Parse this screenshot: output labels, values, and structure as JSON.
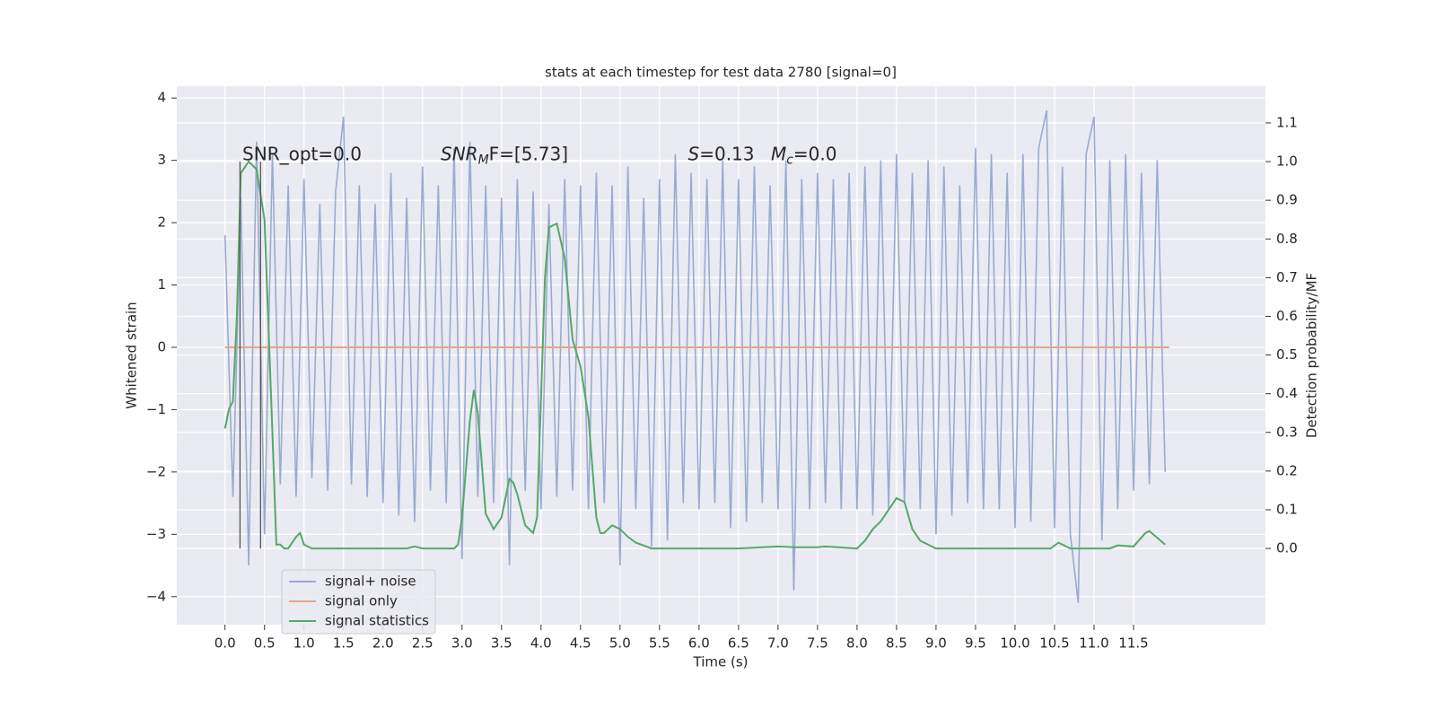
{
  "chart_data": {
    "type": "line",
    "title": "stats at each timestep for test data 2780 [signal=0]",
    "xlabel": "Time (s)",
    "ylabel": "Whitened strain",
    "y2label": "Detection probability/MF",
    "xlim": [
      -0.61,
      13.17
    ],
    "ylim": [
      -4.45,
      4.19
    ],
    "y2lim": [
      -0.197,
      1.195
    ],
    "xticks": [
      {
        "value": 0,
        "label": "0.0"
      },
      0.5,
      {
        "value": 1,
        "label": "1.0"
      },
      1.5,
      {
        "value": 2,
        "label": "2.0"
      },
      2.5,
      {
        "value": 3,
        "label": "3.0"
      },
      3.5,
      {
        "value": 4,
        "label": "4.0"
      },
      4.5,
      {
        "value": 5,
        "label": "5.0"
      },
      5.5,
      {
        "value": 6,
        "label": "6.0"
      },
      6.5,
      {
        "value": 7,
        "label": "7.0"
      },
      7.5,
      {
        "value": 8,
        "label": "8.0"
      },
      8.5,
      {
        "value": 9,
        "label": "9.0"
      },
      9.5,
      {
        "value": 10,
        "label": "10.0"
      },
      10.5,
      {
        "value": 11,
        "label": "11.0"
      },
      11.5
    ],
    "yticks": [
      {
        "value": -4,
        "label": "−4"
      },
      {
        "value": -3,
        "label": "−3"
      },
      {
        "value": -2,
        "label": "−2"
      },
      {
        "value": -1,
        "label": "−1"
      },
      0,
      1,
      2,
      3,
      4
    ],
    "y2ticks": [
      {
        "value": 0,
        "label": "0.0"
      },
      0.1,
      0.2,
      0.3,
      0.4,
      0.5,
      0.6,
      0.7,
      0.8,
      0.9,
      {
        "value": 1,
        "label": "1.0"
      },
      1.1
    ],
    "grid": true,
    "legend": "lower left",
    "series": [
      {
        "name": "signal+ noise",
        "color": "#9aabd0",
        "x": [
          0.0,
          0.1,
          0.2,
          0.3,
          0.4,
          0.5,
          0.6,
          0.7,
          0.8,
          0.9,
          1.0,
          1.1,
          1.2,
          1.3,
          1.4,
          1.5,
          1.6,
          1.7,
          1.8,
          1.9,
          2.0,
          2.1,
          2.2,
          2.3,
          2.4,
          2.5,
          2.6,
          2.7,
          2.8,
          2.9,
          3.0,
          3.1,
          3.2,
          3.3,
          3.4,
          3.5,
          3.6,
          3.7,
          3.8,
          3.9,
          4.0,
          4.1,
          4.2,
          4.3,
          4.4,
          4.5,
          4.6,
          4.7,
          4.8,
          4.9,
          5.0,
          5.1,
          5.2,
          5.3,
          5.4,
          5.5,
          5.6,
          5.7,
          5.8,
          5.9,
          6.0,
          6.1,
          6.2,
          6.3,
          6.4,
          6.5,
          6.6,
          6.7,
          6.8,
          6.9,
          7.0,
          7.1,
          7.2,
          7.3,
          7.4,
          7.5,
          7.6,
          7.7,
          7.8,
          7.9,
          8.0,
          8.1,
          8.2,
          8.3,
          8.4,
          8.5,
          8.6,
          8.7,
          8.8,
          8.9,
          9.0,
          9.1,
          9.2,
          9.3,
          9.4,
          9.5,
          9.6,
          9.7,
          9.8,
          9.9,
          10.0,
          10.1,
          10.2,
          10.3,
          10.4,
          10.5,
          10.6,
          10.7,
          10.8,
          10.9,
          11.0,
          11.1,
          11.2,
          11.3,
          11.4,
          11.5,
          11.6,
          11.7,
          11.8,
          11.9
        ],
        "values": [
          1.8,
          -2.4,
          2.4,
          -3.5,
          3.3,
          -3.0,
          3.1,
          -2.2,
          2.6,
          -2.4,
          2.7,
          -2.1,
          2.3,
          -2.3,
          2.5,
          3.7,
          -2.2,
          2.6,
          -2.4,
          2.3,
          -2.5,
          2.8,
          -2.7,
          2.4,
          -2.8,
          2.9,
          -2.3,
          2.6,
          -2.5,
          3.2,
          -3.4,
          3.3,
          -2.4,
          2.6,
          -2.5,
          2.4,
          -3.5,
          2.7,
          -2.3,
          2.5,
          -2.6,
          2.3,
          -2.4,
          2.7,
          -2.3,
          2.6,
          -2.6,
          2.8,
          -2.5,
          2.6,
          -3.5,
          2.9,
          -2.6,
          2.4,
          -3.2,
          2.7,
          -3.1,
          3.1,
          -2.5,
          2.8,
          -2.6,
          2.7,
          -2.5,
          3.0,
          -2.9,
          2.7,
          -2.8,
          2.9,
          -2.5,
          2.6,
          -2.6,
          3.0,
          -3.9,
          2.7,
          -2.6,
          2.8,
          -2.5,
          2.7,
          -2.6,
          2.8,
          -2.6,
          2.9,
          -2.7,
          3.0,
          -2.6,
          3.1,
          -2.5,
          2.8,
          -2.6,
          3.0,
          -3.0,
          2.9,
          -2.7,
          2.6,
          -2.5,
          3.2,
          -2.6,
          3.1,
          -2.6,
          2.8,
          -2.9,
          3.1,
          -2.8,
          3.2,
          3.8,
          -2.9,
          2.9,
          -3.0,
          -4.1,
          3.1,
          3.7,
          -3.1,
          3.0,
          -2.6,
          3.1,
          -2.3,
          2.8,
          -2.2,
          3.0,
          -2.0
        ]
      },
      {
        "name": "signal only",
        "color": "#e5a585",
        "x": [
          0.0,
          11.95
        ],
        "values": [
          0,
          0
        ]
      },
      {
        "name": "signal statistics",
        "color": "#55a868",
        "axis": "y2",
        "x": [
          0.0,
          0.05,
          0.1,
          0.15,
          0.2,
          0.3,
          0.4,
          0.5,
          0.6,
          0.65,
          0.7,
          0.75,
          0.8,
          0.9,
          0.95,
          1.0,
          1.1,
          2.3,
          2.4,
          2.5,
          2.9,
          2.95,
          3.0,
          3.1,
          3.15,
          3.2,
          3.3,
          3.4,
          3.5,
          3.6,
          3.65,
          3.7,
          3.8,
          3.9,
          3.95,
          4.05,
          4.1,
          4.2,
          4.3,
          4.4,
          4.5,
          4.6,
          4.7,
          4.75,
          4.8,
          4.9,
          5.0,
          5.1,
          5.2,
          5.4,
          6.0,
          6.5,
          7.0,
          7.2,
          7.5,
          7.6,
          8.0,
          8.1,
          8.2,
          8.3,
          8.5,
          8.6,
          8.7,
          8.8,
          9.0,
          10.0,
          10.45,
          10.55,
          10.7,
          11.2,
          11.3,
          11.5,
          11.65,
          11.7,
          11.9
        ],
        "values": [
          0.31,
          0.36,
          0.38,
          0.6,
          0.97,
          1.0,
          0.98,
          0.85,
          0.3,
          0.01,
          0.01,
          0.0,
          0.0,
          0.03,
          0.04,
          0.01,
          0.0,
          0.0,
          0.005,
          0.0,
          0.0,
          0.01,
          0.08,
          0.33,
          0.41,
          0.35,
          0.09,
          0.05,
          0.08,
          0.18,
          0.17,
          0.14,
          0.06,
          0.04,
          0.08,
          0.7,
          0.83,
          0.84,
          0.75,
          0.54,
          0.47,
          0.34,
          0.08,
          0.04,
          0.04,
          0.06,
          0.05,
          0.03,
          0.015,
          0.0,
          0.0,
          0.0,
          0.005,
          0.003,
          0.003,
          0.005,
          0.0,
          0.02,
          0.05,
          0.07,
          0.13,
          0.12,
          0.05,
          0.02,
          0.0,
          0.0,
          0.0,
          0.015,
          0.0,
          0.0,
          0.008,
          0.005,
          0.04,
          0.045,
          0.01
        ]
      }
    ],
    "vlines": {
      "x": [
        0.19,
        0.45
      ],
      "ymin": 0.0,
      "ymax": 1.0,
      "axis": "y2",
      "color": "#555555"
    },
    "annotations": [
      {
        "x": 0.22,
        "y": 3.0,
        "parts": [
          {
            "text": "SNR_opt=0.0"
          }
        ]
      },
      {
        "x": 2.73,
        "y": 3.0,
        "parts": [
          {
            "text": "SNR",
            "style": "italic"
          },
          {
            "text": "M",
            "style": "sub"
          },
          {
            "text": "F=[5.73]"
          }
        ]
      },
      {
        "x": 5.86,
        "y": 3.0,
        "parts": [
          {
            "text": "S",
            "style": "italic"
          },
          {
            "text": "=0.13"
          }
        ]
      },
      {
        "x": 6.91,
        "y": 3.0,
        "parts": [
          {
            "text": "M",
            "style": "italic"
          },
          {
            "text": "c",
            "style": "sub"
          },
          {
            "text": "=0.0"
          }
        ]
      }
    ]
  }
}
